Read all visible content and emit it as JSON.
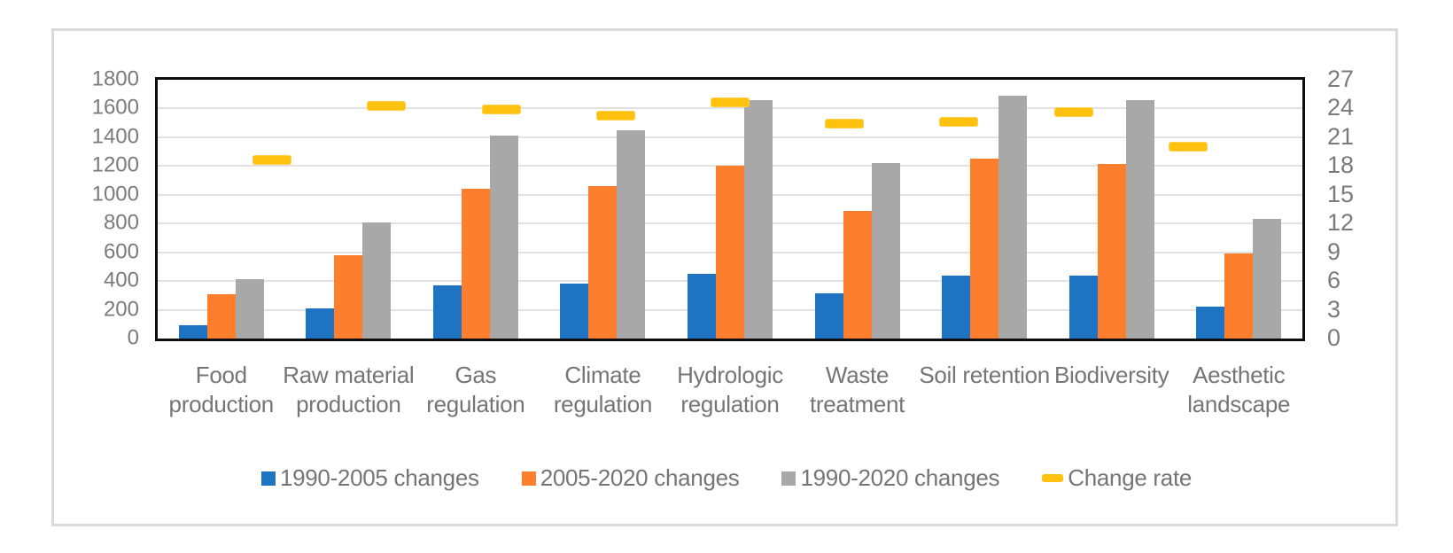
{
  "chart_data": {
    "type": "bar",
    "title": "",
    "xlabel": "",
    "ylabel": "",
    "categories": [
      "Food production",
      "Raw material production",
      "Gas regulation",
      "Climate regulation",
      "Hydrologic regulation",
      "Waste treatment",
      "Soil retention",
      "Biodiversity",
      "Aesthetic landscape"
    ],
    "series": [
      {
        "name": "1990-2005 changes",
        "color": "#1E73C2",
        "axis": "left",
        "values": [
          95,
          210,
          370,
          385,
          450,
          315,
          440,
          435,
          225
        ]
      },
      {
        "name": "2005-2020 changes",
        "color": "#FD7E2C",
        "axis": "left",
        "values": [
          310,
          580,
          1040,
          1060,
          1200,
          890,
          1250,
          1215,
          595
        ]
      },
      {
        "name": "1990-2020 changes",
        "color": "#A8A8A8",
        "axis": "left",
        "values": [
          415,
          810,
          1415,
          1450,
          1660,
          1220,
          1690,
          1660,
          830
        ]
      }
    ],
    "marker_series": {
      "name": "Change rate",
      "color": "#FEC10D",
      "type": "dash-marker",
      "axis": "right",
      "values": [
        18.6,
        24.3,
        23.9,
        23.3,
        24.6,
        22.4,
        22.6,
        23.6,
        20.0
      ]
    },
    "left_axis": {
      "min": 0,
      "max": 1800,
      "step": 200,
      "ticks": [
        "1800",
        "1600",
        "1400",
        "1200",
        "1000",
        "800",
        "600",
        "400",
        "200",
        "0"
      ]
    },
    "right_axis": {
      "min": 0,
      "max": 27,
      "step": 3,
      "ticks": [
        "27",
        "24",
        "21",
        "18",
        "15",
        "12",
        "9",
        "6",
        "3",
        "0"
      ]
    },
    "grid": true,
    "legend_position": "bottom",
    "styles": {
      "gridline_color": "#E2E2E2",
      "plot_border_color": "#0D0D0D",
      "frame_border_color": "#DADADA",
      "text_color": "#757575"
    }
  }
}
